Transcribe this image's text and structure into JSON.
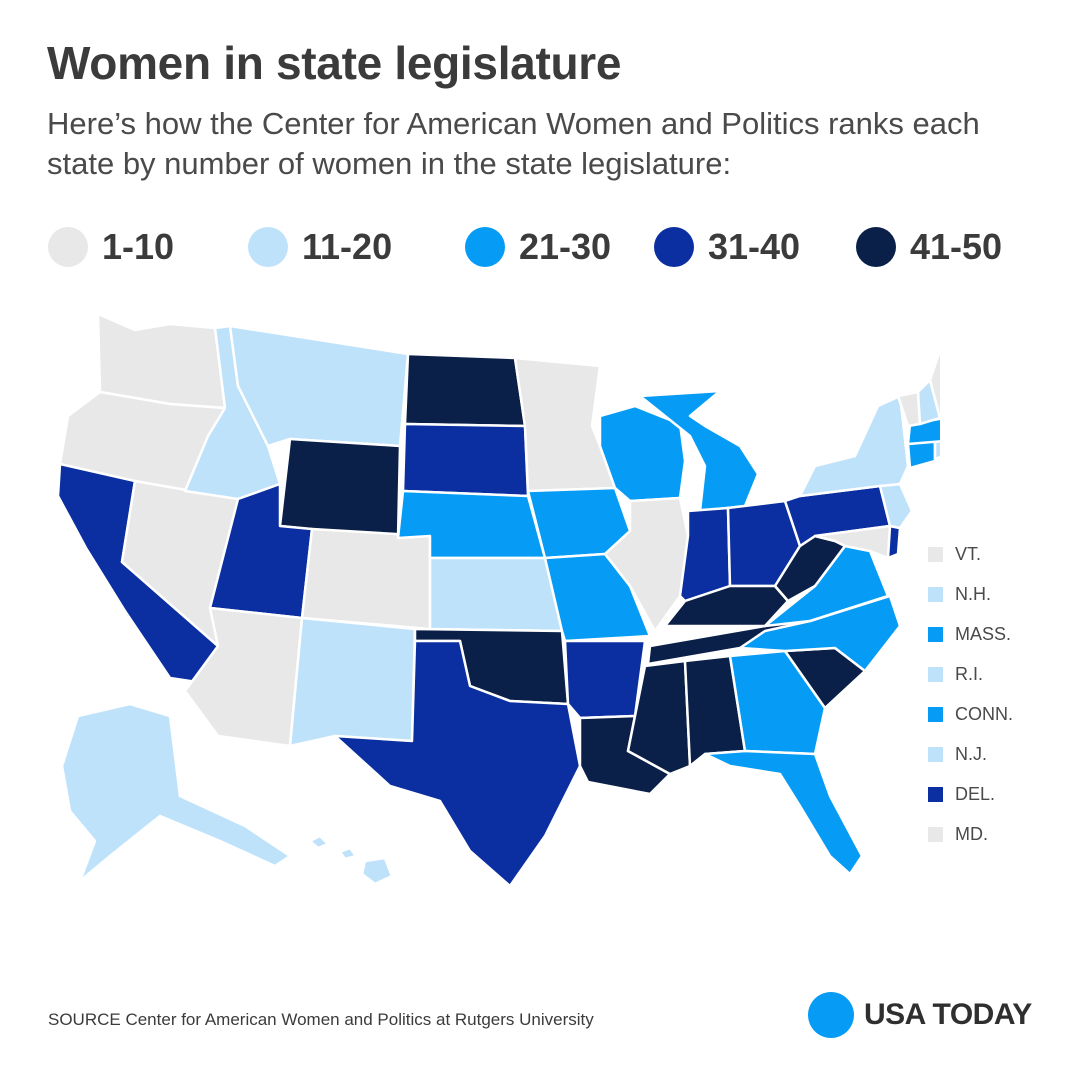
{
  "header": {
    "title": "Women in state legislature",
    "subtitle": "Here’s how the Center for American Women and Politics ranks each state by number of women in the state legislature:"
  },
  "colors": {
    "rank_1_10": "#e8e8e8",
    "rank_11_20": "#bfe2fb",
    "rank_21_30": "#069cf5",
    "rank_31_40": "#0b2fa0",
    "rank_41_50": "#0b2048",
    "brand": "#069cf5"
  },
  "legend": {
    "items": [
      {
        "label": "1-10",
        "color": "#e8e8e8"
      },
      {
        "label": "11-20",
        "color": "#bfe2fb"
      },
      {
        "label": "21-30",
        "color": "#069cf5"
      },
      {
        "label": "31-40",
        "color": "#0b2fa0"
      },
      {
        "label": "41-50",
        "color": "#0b2048"
      }
    ]
  },
  "small_states_key": [
    {
      "label": "VT.",
      "color": "#e8e8e8"
    },
    {
      "label": "N.H.",
      "color": "#bfe2fb"
    },
    {
      "label": "MASS.",
      "color": "#069cf5"
    },
    {
      "label": "R.I.",
      "color": "#bfe2fb"
    },
    {
      "label": "CONN.",
      "color": "#069cf5"
    },
    {
      "label": "N.J.",
      "color": "#bfe2fb"
    },
    {
      "label": "DEL.",
      "color": "#0b2fa0"
    },
    {
      "label": "MD.",
      "color": "#e8e8e8"
    }
  ],
  "footer": {
    "source": "SOURCE Center for American Women and Politics at Rutgers University",
    "brand_name": "USA TODAY"
  }
}
